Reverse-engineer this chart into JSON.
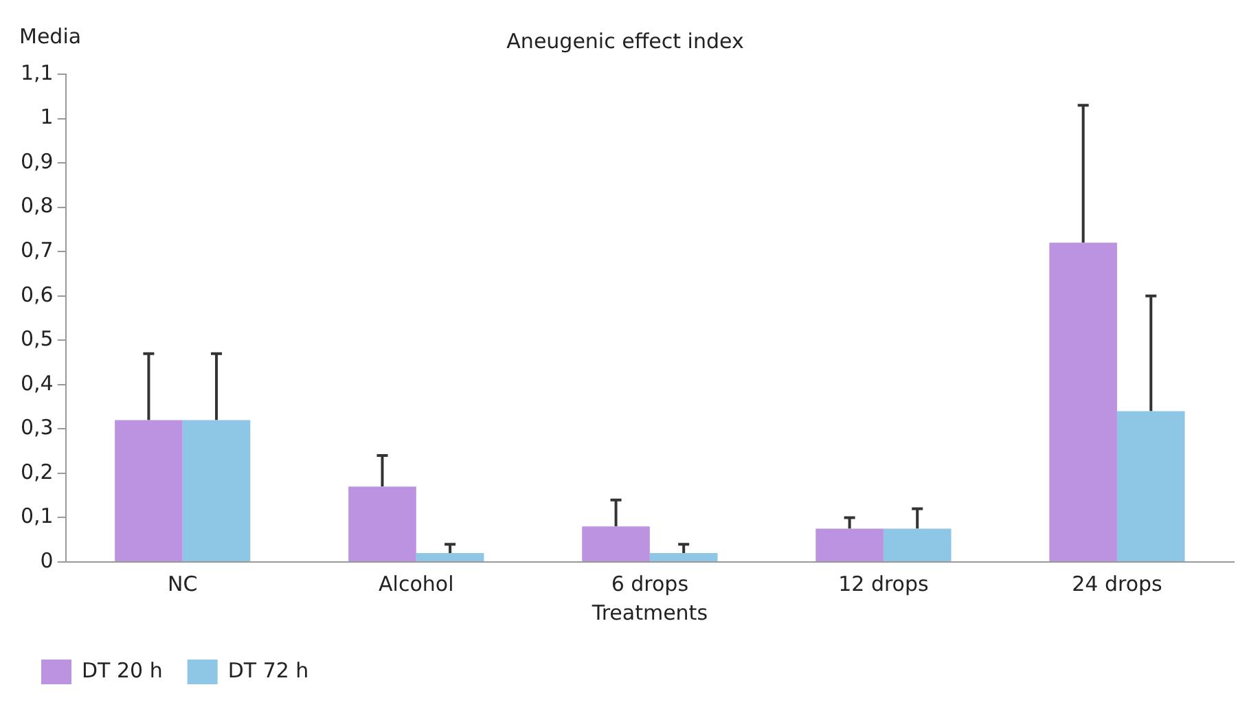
{
  "chart_data": {
    "type": "bar",
    "title": "Aneugenic effect index",
    "xlabel": "Treatments",
    "ylabel": "Media",
    "categories": [
      "NC",
      "Alcohol",
      "6 drops",
      "12 drops",
      "24 drops"
    ],
    "series": [
      {
        "name": "DT 20 h",
        "color": "#bb93e0",
        "values": [
          0.32,
          0.17,
          0.08,
          0.075,
          0.72
        ],
        "errors": [
          [
            0.32,
            0.47
          ],
          [
            0.17,
            0.24
          ],
          [
            0.08,
            0.14
          ],
          [
            0.075,
            0.1
          ],
          [
            0.72,
            1.03
          ]
        ]
      },
      {
        "name": "DT 72 h",
        "color": "#8ec6e6",
        "values": [
          0.32,
          0.02,
          0.02,
          0.075,
          0.34
        ],
        "errors": [
          [
            0.32,
            0.47
          ],
          [
            0.02,
            0.04
          ],
          [
            0.02,
            0.04
          ],
          [
            0.075,
            0.12
          ],
          [
            0.34,
            0.6
          ]
        ]
      }
    ],
    "ylim": [
      0,
      1.1
    ],
    "yticks": [
      0,
      {
        "value": 0.1,
        "label": "0,1"
      },
      {
        "value": 0.2,
        "label": "0,2"
      },
      {
        "value": 0.3,
        "label": "0,3"
      },
      {
        "value": 0.4,
        "label": "0,4"
      },
      {
        "value": 0.5,
        "label": "0,5"
      },
      {
        "value": 0.6,
        "label": "0,6"
      },
      {
        "value": 0.7,
        "label": "0,7"
      },
      {
        "value": 0.8,
        "label": "0,8"
      },
      {
        "value": 0.9,
        "label": "0,9"
      },
      1,
      {
        "value": 1.1,
        "label": "1,1"
      }
    ],
    "grid": false,
    "legend": "bottom left"
  }
}
